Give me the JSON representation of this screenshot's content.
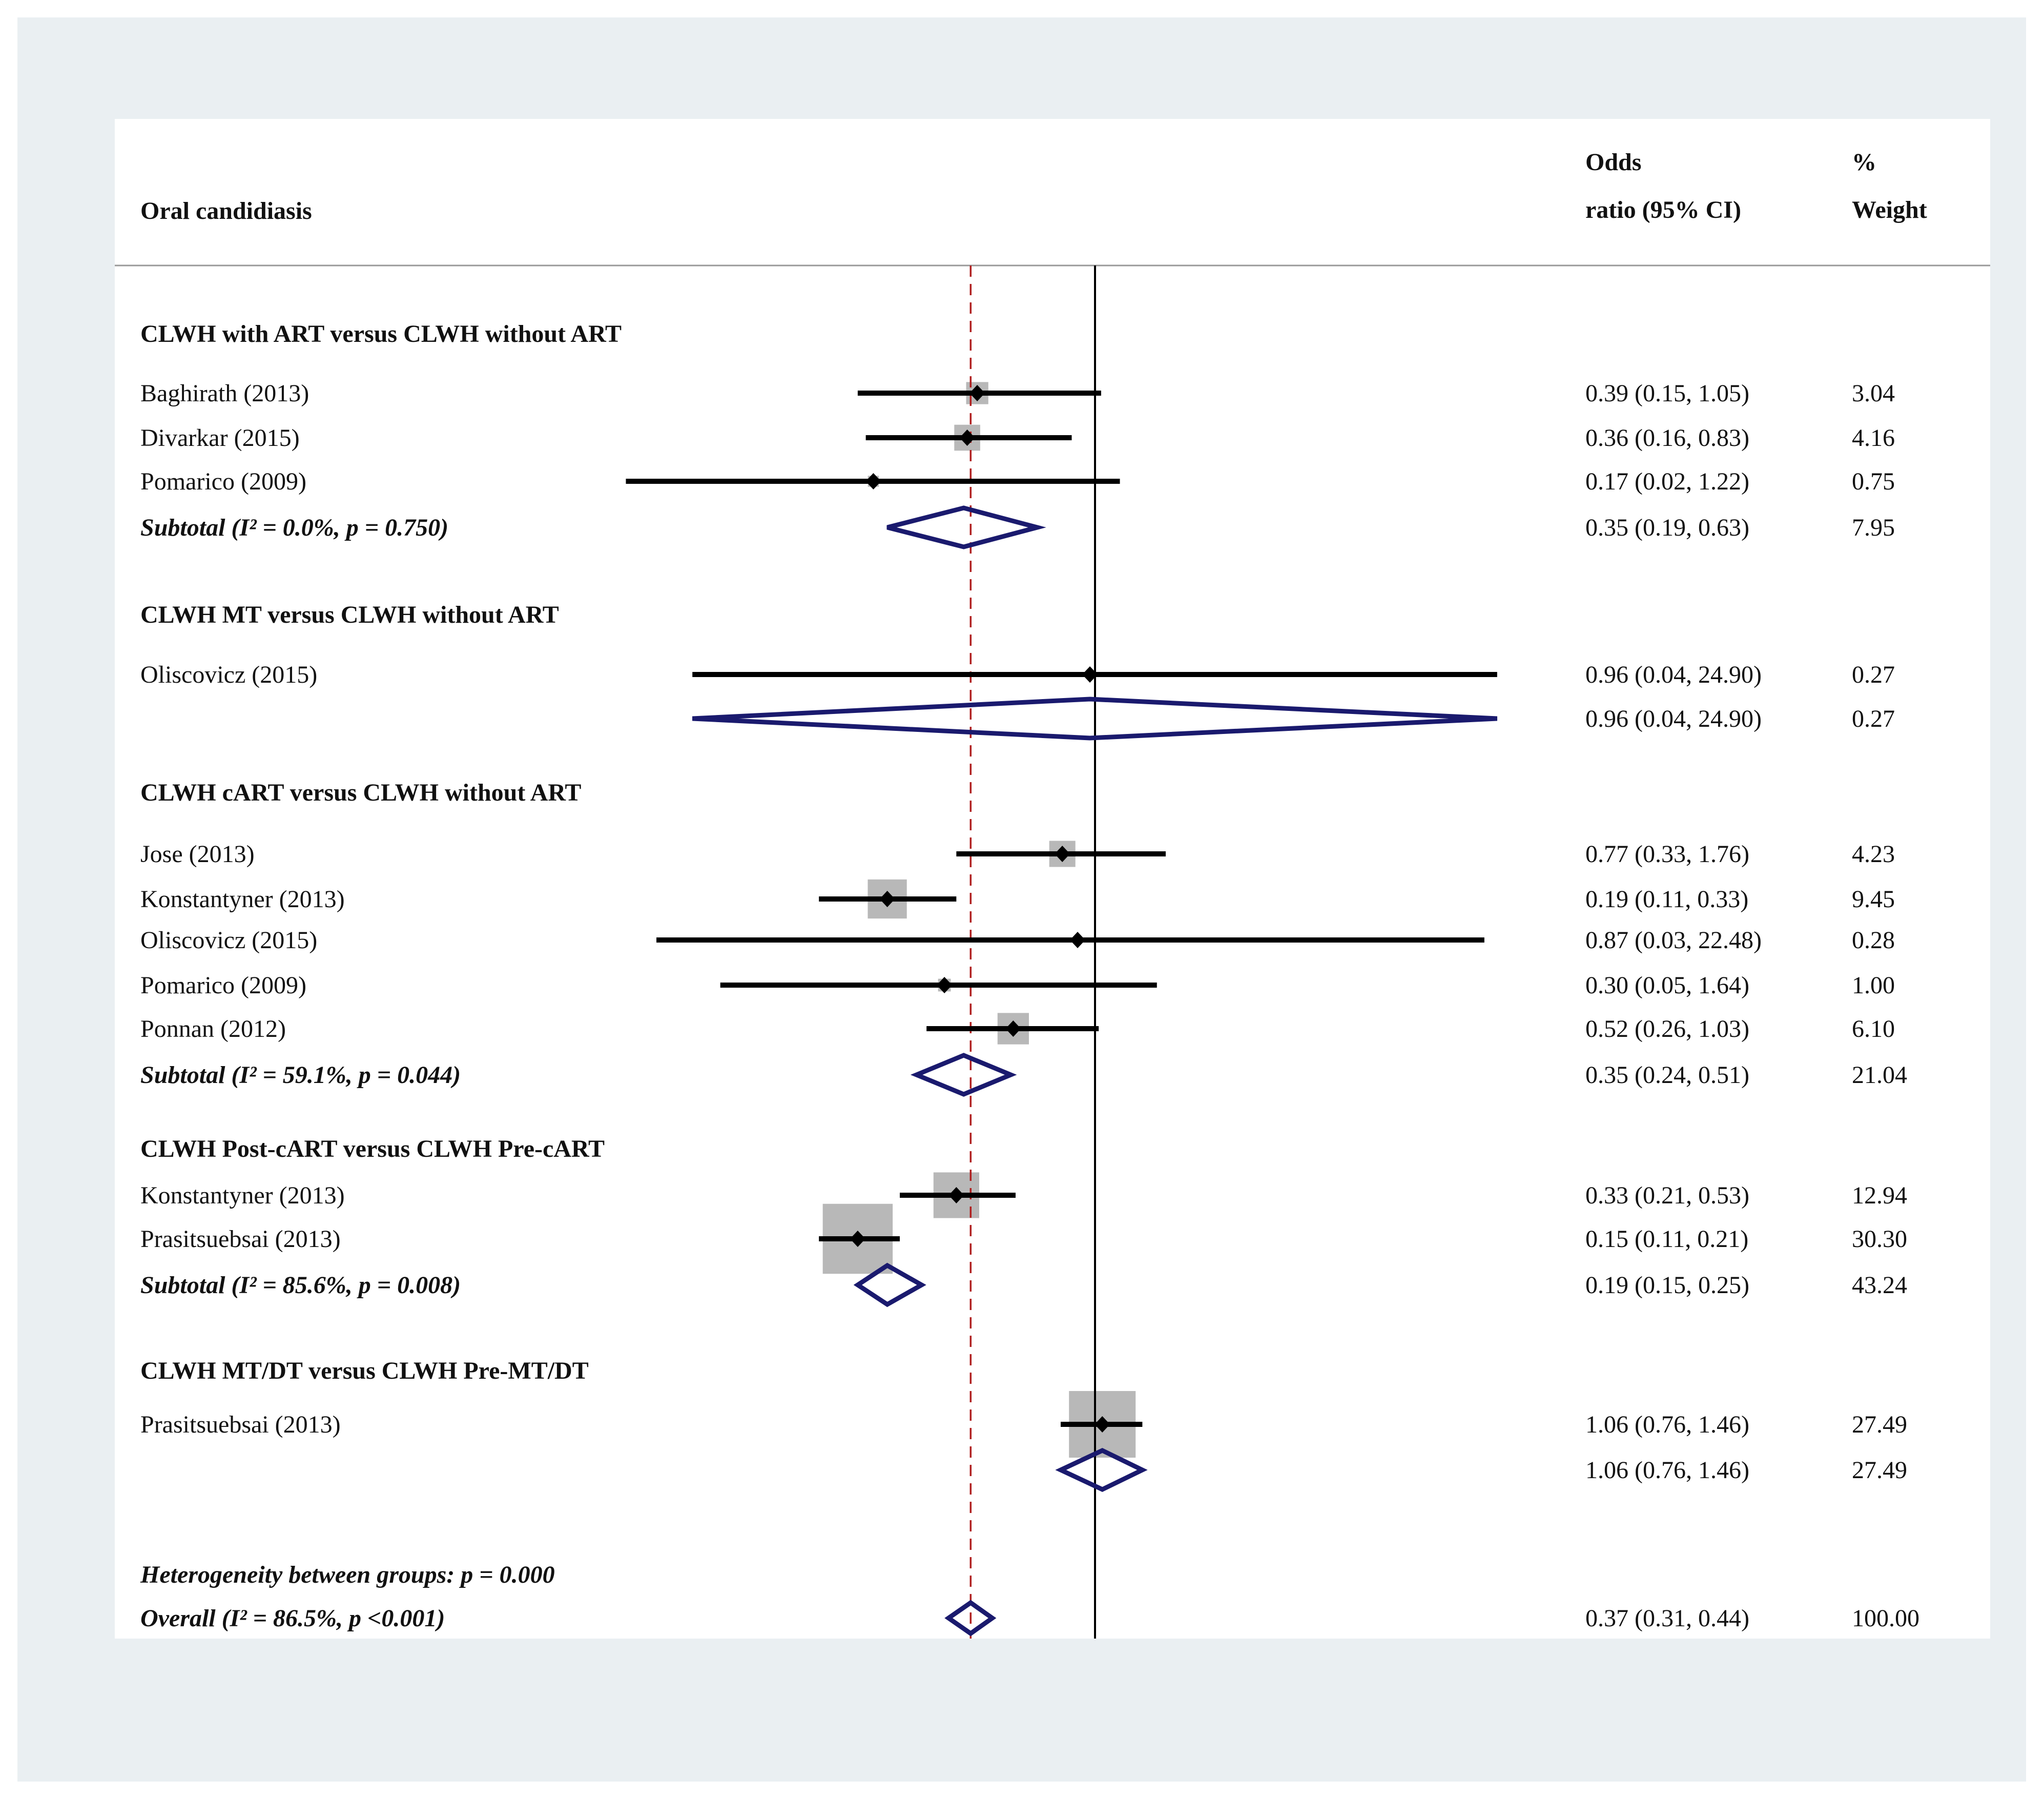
{
  "chart_data": {
    "type": "forest",
    "title": "Oral candidiasis",
    "header": {
      "effect": [
        "Odds",
        "ratio (95% CI)"
      ],
      "weight": [
        "%",
        "Weight"
      ]
    },
    "x_scale": "log",
    "x_ticks": [
      {
        "value": 0.0237,
        "label": "0.0237"
      },
      {
        "value": 1,
        "label": "1"
      },
      {
        "value": 42.1,
        "label": "42.1"
      }
    ],
    "null_line": 1,
    "overall_line": 0.37,
    "groups": [
      {
        "label": "CLWH with ART versus CLWH without ART",
        "studies": [
          {
            "label": "Baghirath (2013)",
            "or": 0.39,
            "lo": 0.15,
            "hi": 1.05,
            "text": "0.39 (0.15, 1.05)",
            "weight": "3.04"
          },
          {
            "label": "Divarkar (2015)",
            "or": 0.36,
            "lo": 0.16,
            "hi": 0.83,
            "text": "0.36 (0.16, 0.83)",
            "weight": "4.16"
          },
          {
            "label": "Pomarico (2009)",
            "or": 0.17,
            "lo": 0.02,
            "hi": 1.22,
            "text": "0.17 (0.02, 1.22)",
            "weight": "0.75"
          }
        ],
        "subtotal": {
          "label": "Subtotal  (I² = 0.0%, p = 0.750)",
          "or": 0.35,
          "lo": 0.19,
          "hi": 0.63,
          "text": "0.35 (0.19, 0.63)",
          "weight": "7.95"
        }
      },
      {
        "label": "CLWH MT versus CLWH without ART",
        "studies": [
          {
            "label": "Oliscovicz (2015)",
            "or": 0.96,
            "lo": 0.04,
            "hi": 24.9,
            "text": "0.96 (0.04, 24.90)",
            "weight": "0.27"
          }
        ],
        "subtotal": {
          "label": "",
          "or": 0.96,
          "lo": 0.04,
          "hi": 24.9,
          "text": "0.96 (0.04, 24.90)",
          "weight": "0.27"
        }
      },
      {
        "label": "CLWH cART versus CLWH without ART",
        "studies": [
          {
            "label": "Jose (2013)",
            "or": 0.77,
            "lo": 0.33,
            "hi": 1.76,
            "text": "0.77 (0.33, 1.76)",
            "weight": "4.23"
          },
          {
            "label": "Konstantyner (2013)",
            "or": 0.19,
            "lo": 0.11,
            "hi": 0.33,
            "text": "0.19 (0.11, 0.33)",
            "weight": "9.45"
          },
          {
            "label": "Oliscovicz (2015)",
            "or": 0.87,
            "lo": 0.03,
            "hi": 22.48,
            "text": "0.87 (0.03, 22.48)",
            "weight": "0.28"
          },
          {
            "label": "Pomarico (2009)",
            "or": 0.3,
            "lo": 0.05,
            "hi": 1.64,
            "text": "0.30 (0.05, 1.64)",
            "weight": "1.00"
          },
          {
            "label": "Ponnan (2012)",
            "or": 0.52,
            "lo": 0.26,
            "hi": 1.03,
            "text": "0.52 (0.26, 1.03)",
            "weight": "6.10"
          }
        ],
        "subtotal": {
          "label": "Subtotal  (I² = 59.1%, p = 0.044)",
          "or": 0.35,
          "lo": 0.24,
          "hi": 0.51,
          "text": "0.35 (0.24, 0.51)",
          "weight": "21.04"
        }
      },
      {
        "label": "CLWH Post-cART versus CLWH Pre-cART",
        "studies": [
          {
            "label": "Konstantyner (2013)",
            "or": 0.33,
            "lo": 0.21,
            "hi": 0.53,
            "text": "0.33 (0.21, 0.53)",
            "weight": "12.94"
          },
          {
            "label": "Prasitsuebsai (2013)",
            "or": 0.15,
            "lo": 0.11,
            "hi": 0.21,
            "text": "0.15 (0.11, 0.21)",
            "weight": "30.30"
          }
        ],
        "subtotal": {
          "label": "Subtotal  (I² = 85.6%, p = 0.008)",
          "or": 0.19,
          "lo": 0.15,
          "hi": 0.25,
          "text": "0.19 (0.15, 0.25)",
          "weight": "43.24"
        }
      },
      {
        "label": "CLWH MT/DT versus CLWH Pre-MT/DT",
        "studies": [
          {
            "label": "Prasitsuebsai (2013)",
            "or": 1.06,
            "lo": 0.76,
            "hi": 1.46,
            "text": "1.06 (0.76, 1.46)",
            "weight": "27.49"
          }
        ],
        "subtotal": {
          "label": "",
          "or": 1.06,
          "lo": 0.76,
          "hi": 1.46,
          "text": "1.06 (0.76, 1.46)",
          "weight": "27.49"
        }
      }
    ],
    "heterogeneity": "Heterogeneity between groups: p = 0.000",
    "overall": {
      "label": "Overall  (I² = 86.5%, p <0.001)",
      "or": 0.37,
      "lo": 0.31,
      "hi": 0.44,
      "text": "0.37 (0.31, 0.44)",
      "weight": "100.00"
    },
    "colors": {
      "box": "#b8b8b8",
      "diamond": "#1a1a6e",
      "overall_line": "#b02020",
      "line": "#000000"
    }
  }
}
